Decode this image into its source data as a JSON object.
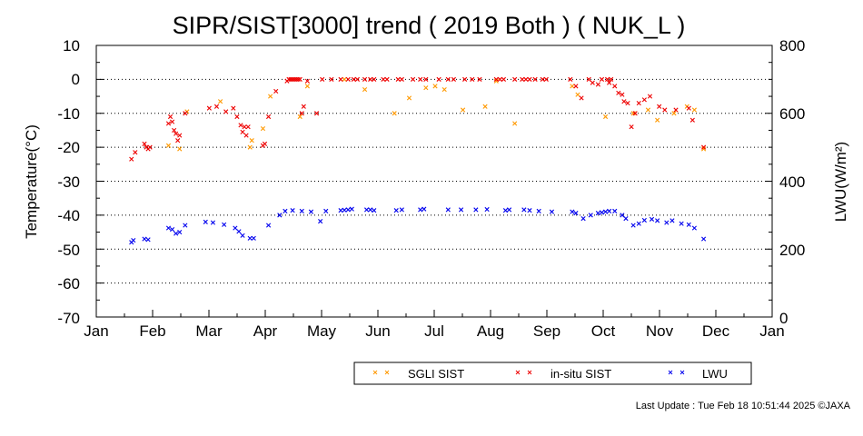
{
  "chart_data": {
    "type": "scatter",
    "title": "SIPR/SIST[3000] trend ( 2019 Both ) ( NUK_L )",
    "ylabel": "Temperature(°C)",
    "ylabel2": "LWU(W/m²)",
    "ylim": [
      -70,
      10
    ],
    "ylim2": [
      0,
      800
    ],
    "yticks": [
      "10",
      "0",
      "-10",
      "-20",
      "-30",
      "-40",
      "-50",
      "-60",
      "-70"
    ],
    "yticks2": [
      "800",
      "600",
      "400",
      "200",
      "0"
    ],
    "months": [
      "Jan",
      "Feb",
      "Mar",
      "Apr",
      "May",
      "Jun",
      "Jul",
      "Aug",
      "Sep",
      "Oct",
      "Nov",
      "Dec",
      "Jan"
    ],
    "grid": true,
    "legend_position": "bottom",
    "series": [
      {
        "name": "SGLI SIST",
        "color": "#ff9900",
        "axis": "left",
        "points": [
          [
            "2019-02-09",
            -19.5
          ],
          [
            "2019-02-15",
            -20.5
          ],
          [
            "2019-02-19",
            -9.5
          ],
          [
            "2019-03-09",
            -6.5
          ],
          [
            "2019-03-26",
            -18.0
          ],
          [
            "2019-03-25",
            -20.0
          ],
          [
            "2019-04-05",
            -5.0
          ],
          [
            "2019-04-01",
            -14.5
          ],
          [
            "2019-04-21",
            -11.0
          ],
          [
            "2019-04-25",
            -2.0
          ],
          [
            "2019-05-15",
            0.0
          ],
          [
            "2019-05-26",
            -3.0
          ],
          [
            "2019-06-11",
            -10.0
          ],
          [
            "2019-06-19",
            -5.5
          ],
          [
            "2019-06-28",
            -2.5
          ],
          [
            "2019-07-03",
            -2.0
          ],
          [
            "2019-07-08",
            -3.0
          ],
          [
            "2019-07-18",
            -9.0
          ],
          [
            "2019-07-30",
            -8.0
          ],
          [
            "2019-08-05",
            -0.5
          ],
          [
            "2019-08-15",
            -13.0
          ],
          [
            "2019-09-15",
            -2.0
          ],
          [
            "2019-09-18",
            -4.5
          ],
          [
            "2019-10-03",
            -11.0
          ],
          [
            "2019-10-18",
            -10.0
          ],
          [
            "2019-10-26",
            -9.0
          ],
          [
            "2019-10-31",
            -12.0
          ],
          [
            "2019-11-09",
            -10.0
          ],
          [
            "2019-11-16",
            -8.0
          ],
          [
            "2019-11-20",
            -9.0
          ],
          [
            "2019-11-25",
            -20.5
          ]
        ]
      },
      {
        "name": "in-situ SIST",
        "color": "#ee0000",
        "axis": "left",
        "points": [
          [
            "2019-01-20",
            -23.5
          ],
          [
            "2019-01-22",
            -21.5
          ],
          [
            "2019-01-27",
            -19.0
          ],
          [
            "2019-01-28",
            -20.0
          ],
          [
            "2019-01-29",
            -20.5
          ],
          [
            "2019-01-30",
            -20.0
          ],
          [
            "2019-02-09",
            -13.0
          ],
          [
            "2019-02-10",
            -11.0
          ],
          [
            "2019-02-11",
            -12.5
          ],
          [
            "2019-02-12",
            -15.0
          ],
          [
            "2019-02-13",
            -16.0
          ],
          [
            "2019-02-14",
            -18.0
          ],
          [
            "2019-02-15",
            -16.5
          ],
          [
            "2019-02-18",
            -10.0
          ],
          [
            "2019-03-03",
            -8.5
          ],
          [
            "2019-03-07",
            -8.0
          ],
          [
            "2019-03-12",
            -9.5
          ],
          [
            "2019-03-16",
            -8.5
          ],
          [
            "2019-03-18",
            -11.0
          ],
          [
            "2019-03-20",
            -13.5
          ],
          [
            "2019-03-21",
            -15.5
          ],
          [
            "2019-03-22",
            -14.0
          ],
          [
            "2019-03-23",
            -16.5
          ],
          [
            "2019-03-24",
            -14.0
          ],
          [
            "2019-04-01",
            -19.5
          ],
          [
            "2019-04-02",
            -19.0
          ],
          [
            "2019-04-04",
            -11.0
          ],
          [
            "2019-04-08",
            -3.5
          ],
          [
            "2019-04-14",
            -0.5
          ],
          [
            "2019-04-15",
            0.0
          ],
          [
            "2019-04-16",
            0.0
          ],
          [
            "2019-04-17",
            0.0
          ],
          [
            "2019-04-18",
            0.0
          ],
          [
            "2019-04-19",
            0.0
          ],
          [
            "2019-04-20",
            0.0
          ],
          [
            "2019-04-21",
            0.0
          ],
          [
            "2019-04-22",
            -10.0
          ],
          [
            "2019-04-23",
            -8.0
          ],
          [
            "2019-04-25",
            -0.5
          ],
          [
            "2019-04-30",
            -10.0
          ],
          [
            "2019-05-03",
            0.0
          ],
          [
            "2019-05-08",
            0.0
          ],
          [
            "2019-05-13",
            0.0
          ],
          [
            "2019-05-17",
            0.0
          ],
          [
            "2019-05-20",
            0.0
          ],
          [
            "2019-05-22",
            0.0
          ],
          [
            "2019-05-26",
            0.0
          ],
          [
            "2019-05-29",
            0.0
          ],
          [
            "2019-05-31",
            0.0
          ],
          [
            "2019-06-05",
            0.0
          ],
          [
            "2019-06-07",
            0.0
          ],
          [
            "2019-06-13",
            0.0
          ],
          [
            "2019-06-15",
            0.0
          ],
          [
            "2019-06-21",
            0.0
          ],
          [
            "2019-06-25",
            0.0
          ],
          [
            "2019-06-28",
            0.0
          ],
          [
            "2019-07-05",
            0.0
          ],
          [
            "2019-07-10",
            0.0
          ],
          [
            "2019-07-13",
            0.0
          ],
          [
            "2019-07-19",
            0.0
          ],
          [
            "2019-07-23",
            0.0
          ],
          [
            "2019-07-27",
            0.0
          ],
          [
            "2019-08-05",
            0.0
          ],
          [
            "2019-08-07",
            0.0
          ],
          [
            "2019-08-09",
            0.0
          ],
          [
            "2019-08-15",
            0.0
          ],
          [
            "2019-08-19",
            0.0
          ],
          [
            "2019-08-21",
            0.0
          ],
          [
            "2019-08-23",
            0.0
          ],
          [
            "2019-08-26",
            0.0
          ],
          [
            "2019-08-30",
            0.0
          ],
          [
            "2019-09-01",
            0.0
          ],
          [
            "2019-09-14",
            0.0
          ],
          [
            "2019-09-17",
            -2.0
          ],
          [
            "2019-09-20",
            -5.5
          ],
          [
            "2019-09-24",
            0.0
          ],
          [
            "2019-09-26",
            -1.0
          ],
          [
            "2019-09-29",
            -1.5
          ],
          [
            "2019-10-01",
            0.0
          ],
          [
            "2019-10-04",
            0.0
          ],
          [
            "2019-10-05",
            -1.0
          ],
          [
            "2019-10-06",
            0.0
          ],
          [
            "2019-10-08",
            -2.0
          ],
          [
            "2019-10-10",
            -4.0
          ],
          [
            "2019-10-12",
            -4.5
          ],
          [
            "2019-10-13",
            -6.5
          ],
          [
            "2019-10-15",
            -7.0
          ],
          [
            "2019-10-17",
            -14.0
          ],
          [
            "2019-10-19",
            -10.0
          ],
          [
            "2019-10-21",
            -7.0
          ],
          [
            "2019-10-24",
            -6.0
          ],
          [
            "2019-10-27",
            -5.0
          ],
          [
            "2019-11-01",
            -8.0
          ],
          [
            "2019-11-04",
            -9.0
          ],
          [
            "2019-11-10",
            -9.0
          ],
          [
            "2019-11-17",
            -8.5
          ],
          [
            "2019-11-19",
            -12.0
          ],
          [
            "2019-11-25",
            -20.0
          ]
        ]
      },
      {
        "name": "LWU",
        "color": "#0000ee",
        "axis": "right",
        "points": [
          [
            "2019-01-20",
            220
          ],
          [
            "2019-01-21",
            226
          ],
          [
            "2019-01-27",
            230
          ],
          [
            "2019-01-29",
            228
          ],
          [
            "2019-02-09",
            262
          ],
          [
            "2019-02-11",
            258
          ],
          [
            "2019-02-13",
            246
          ],
          [
            "2019-02-15",
            250
          ],
          [
            "2019-02-18",
            270
          ],
          [
            "2019-03-01",
            280
          ],
          [
            "2019-03-05",
            278
          ],
          [
            "2019-03-11",
            272
          ],
          [
            "2019-03-17",
            262
          ],
          [
            "2019-03-19",
            252
          ],
          [
            "2019-03-21",
            240
          ],
          [
            "2019-03-25",
            232
          ],
          [
            "2019-03-27",
            232
          ],
          [
            "2019-04-04",
            270
          ],
          [
            "2019-04-10",
            300
          ],
          [
            "2019-04-13",
            312
          ],
          [
            "2019-04-17",
            314
          ],
          [
            "2019-04-22",
            312
          ],
          [
            "2019-04-27",
            310
          ],
          [
            "2019-05-02",
            282
          ],
          [
            "2019-05-05",
            312
          ],
          [
            "2019-05-13",
            314
          ],
          [
            "2019-05-15",
            315
          ],
          [
            "2019-05-17",
            316
          ],
          [
            "2019-05-19",
            318
          ],
          [
            "2019-05-27",
            316
          ],
          [
            "2019-05-29",
            316
          ],
          [
            "2019-05-31",
            314
          ],
          [
            "2019-06-12",
            314
          ],
          [
            "2019-06-15",
            316
          ],
          [
            "2019-06-25",
            316
          ],
          [
            "2019-06-27",
            318
          ],
          [
            "2019-07-10",
            316
          ],
          [
            "2019-07-17",
            316
          ],
          [
            "2019-07-25",
            316
          ],
          [
            "2019-07-31",
            317
          ],
          [
            "2019-08-10",
            314
          ],
          [
            "2019-08-12",
            316
          ],
          [
            "2019-08-20",
            316
          ],
          [
            "2019-08-23",
            314
          ],
          [
            "2019-08-28",
            312
          ],
          [
            "2019-09-04",
            310
          ],
          [
            "2019-09-15",
            310
          ],
          [
            "2019-09-17",
            306
          ],
          [
            "2019-09-21",
            290
          ],
          [
            "2019-09-25",
            300
          ],
          [
            "2019-09-29",
            306
          ],
          [
            "2019-10-01",
            308
          ],
          [
            "2019-10-03",
            310
          ],
          [
            "2019-10-05",
            312
          ],
          [
            "2019-10-08",
            312
          ],
          [
            "2019-10-12",
            300
          ],
          [
            "2019-10-14",
            290
          ],
          [
            "2019-10-18",
            270
          ],
          [
            "2019-10-21",
            275
          ],
          [
            "2019-10-24",
            285
          ],
          [
            "2019-10-28",
            288
          ],
          [
            "2019-10-31",
            284
          ],
          [
            "2019-11-05",
            278
          ],
          [
            "2019-11-08",
            284
          ],
          [
            "2019-11-13",
            275
          ],
          [
            "2019-11-17",
            272
          ],
          [
            "2019-11-20",
            262
          ],
          [
            "2019-11-25",
            230
          ]
        ]
      }
    ]
  },
  "footer": {
    "last_update": "Last Update : Tue Feb 18 10:51:44 2025  ©JAXA"
  }
}
